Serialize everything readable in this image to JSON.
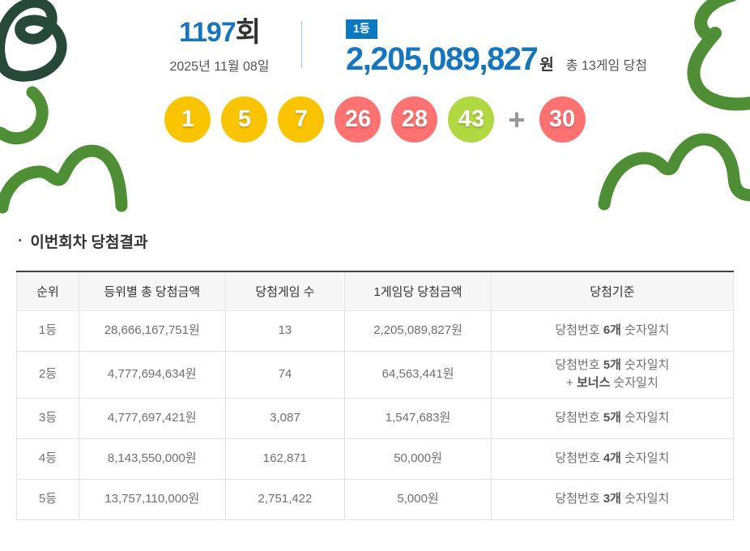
{
  "header": {
    "round_number": "1197",
    "round_suffix": "회",
    "date": "2025년 11월 08일",
    "rank_badge": "1등",
    "prize_amount": "2,205,089,827",
    "prize_unit": "원",
    "total_games": "총 13게임 당첨"
  },
  "balls": {
    "numbers": [
      {
        "value": "1",
        "color": "#fbc400"
      },
      {
        "value": "5",
        "color": "#fbc400"
      },
      {
        "value": "7",
        "color": "#fbc400"
      },
      {
        "value": "26",
        "color": "#ff7272"
      },
      {
        "value": "28",
        "color": "#ff7272"
      },
      {
        "value": "43",
        "color": "#b0d840"
      }
    ],
    "plus": "+",
    "bonus": {
      "value": "30",
      "color": "#ff7272"
    }
  },
  "result_section": {
    "bullet": "·",
    "title": "이번회차 당첨결과",
    "table": {
      "headers": [
        "순위",
        "등위별 총 당첨금액",
        "당첨게임 수",
        "1게임당 당첨금액",
        "당첨기준"
      ],
      "rows": [
        {
          "rank": "1등",
          "total": "28,666,167,751원",
          "games": "13",
          "per_game": "2,205,089,827원",
          "criteria": [
            {
              "text": "당첨번호 ",
              "bold": false
            },
            {
              "text": "6개",
              "bold": true
            },
            {
              "text": " 숫자일치",
              "bold": false
            }
          ]
        },
        {
          "rank": "2등",
          "total": "4,777,694,634원",
          "games": "74",
          "per_game": "64,563,441원",
          "criteria": [
            {
              "text": "당첨번호 ",
              "bold": false
            },
            {
              "text": "5개",
              "bold": true
            },
            {
              "text": " 숫자일치\n+ ",
              "bold": false
            },
            {
              "text": "보너스",
              "bold": true
            },
            {
              "text": " 숫자일치",
              "bold": false
            }
          ]
        },
        {
          "rank": "3등",
          "total": "4,777,697,421원",
          "games": "3,087",
          "per_game": "1,547,683원",
          "criteria": [
            {
              "text": "당첨번호 ",
              "bold": false
            },
            {
              "text": "5개",
              "bold": true
            },
            {
              "text": " 숫자일치",
              "bold": false
            }
          ]
        },
        {
          "rank": "4등",
          "total": "8,143,550,000원",
          "games": "162,871",
          "per_game": "50,000원",
          "criteria": [
            {
              "text": "당첨번호 ",
              "bold": false
            },
            {
              "text": "4개",
              "bold": true
            },
            {
              "text": " 숫자일치",
              "bold": false
            }
          ]
        },
        {
          "rank": "5등",
          "total": "13,757,110,000원",
          "games": "2,751,422",
          "per_game": "5,000원",
          "criteria": [
            {
              "text": "당첨번호 ",
              "bold": false
            },
            {
              "text": "3개",
              "bold": true
            },
            {
              "text": " 숫자일치",
              "bold": false
            }
          ]
        }
      ]
    }
  },
  "colors": {
    "accent_blue": "#1576bf",
    "badge_blue": "#0b79c0",
    "ball_yellow": "#fbc400",
    "ball_red": "#ff7272",
    "ball_green": "#b0d840",
    "plus_gray": "#999999",
    "deco_green": "#4e8f35",
    "deco_dark_green": "#26493a"
  }
}
